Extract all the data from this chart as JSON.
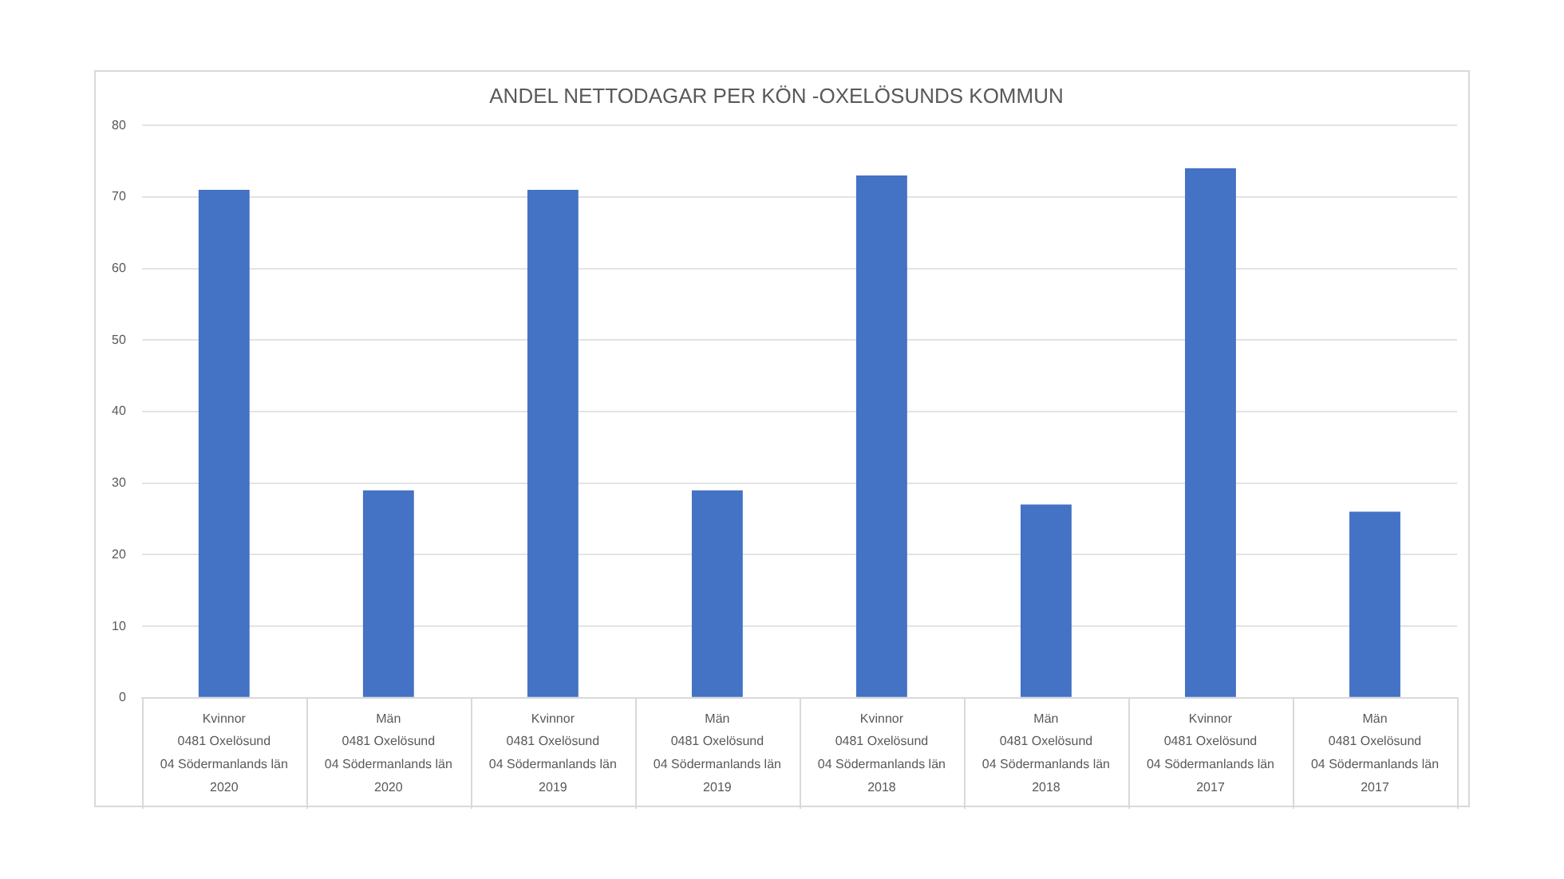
{
  "chart_data": {
    "type": "bar",
    "title": "ANDEL NETTODAGAR PER KÖN -OXELÖSUNDS KOMMUN",
    "categories": [
      "Kvinnor\n0481 Oxelösund\n04 Södermanlands län\n2020",
      "Män\n0481 Oxelösund\n04 Södermanlands län\n2020",
      "Kvinnor\n0481 Oxelösund\n04 Södermanlands län\n2019",
      "Män\n0481 Oxelösund\n04 Södermanlands län\n2019",
      "Kvinnor\n0481 Oxelösund\n04 Södermanlands län\n2018",
      "Män\n0481 Oxelösund\n04 Södermanlands län\n2018",
      "Kvinnor\n0481 Oxelösund\n04 Södermanlands län\n2017",
      "Män\n0481 Oxelösund\n04 Södermanlands län\n2017"
    ],
    "values": [
      71,
      29,
      71,
      29,
      73,
      27,
      74,
      26
    ],
    "color": "#4472c4",
    "ylim": [
      0,
      80
    ],
    "yticks": [
      0,
      10,
      20,
      30,
      40,
      50,
      60,
      70,
      80
    ],
    "grid": "y"
  }
}
